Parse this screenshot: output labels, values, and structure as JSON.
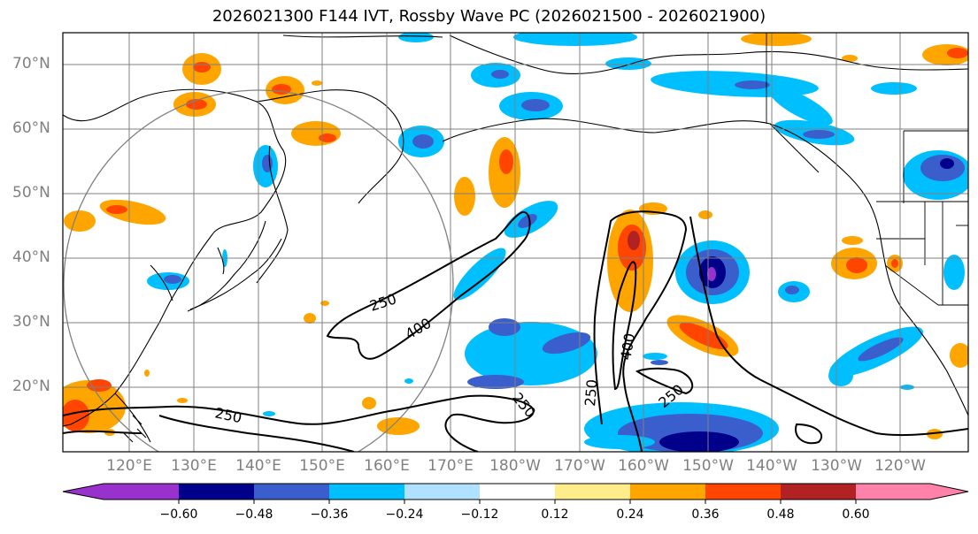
{
  "title": "2026021300 F144 IVT, Rossby Wave PC (2026021500 - 2026021900)",
  "lat_labels": [
    "70°N",
    "60°N",
    "50°N",
    "40°N",
    "30°N",
    "20°N"
  ],
  "lon_labels": [
    "120°E",
    "130°E",
    "140°E",
    "150°E",
    "160°E",
    "170°E",
    "180°W",
    "170°W",
    "160°W",
    "150°W",
    "140°W",
    "130°W",
    "120°W"
  ],
  "ivt_contour_labels": [
    "250",
    "400",
    "250",
    "250",
    "400",
    "250",
    "250"
  ],
  "colorbar": {
    "ticks": [
      "−0.60",
      "−0.48",
      "−0.36",
      "−0.24",
      "−0.12",
      "0.12",
      "0.24",
      "0.36",
      "0.48",
      "0.60"
    ],
    "colors": [
      "#9932cc",
      "#00008b",
      "#3a5fcd",
      "#00bfff",
      "#b0e2ff",
      "#ffffff",
      "#ffec8b",
      "#ffa500",
      "#ff4500",
      "#b22222",
      "#ff82ab"
    ]
  },
  "colors": {
    "positive_strong": "#ff4500",
    "positive": "#ffa500",
    "negative": "#00bfff",
    "negative_strong": "#3a5fcd",
    "grid": "#808080"
  }
}
